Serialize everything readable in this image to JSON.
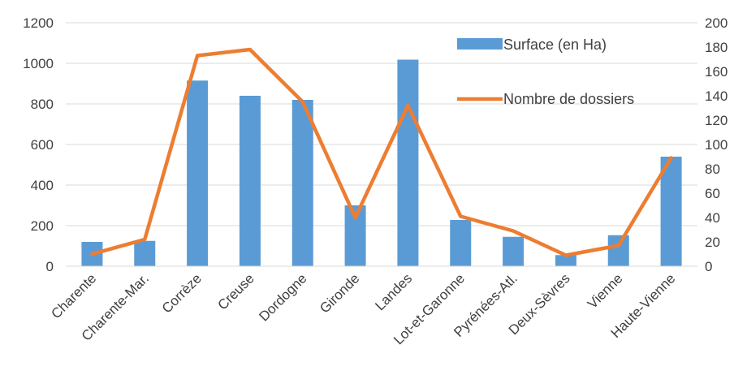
{
  "chart_data": {
    "type": "bar+line",
    "title": "",
    "categories": [
      "Charente",
      "Charente-Mar.",
      "Corrèze",
      "Creuse",
      "Dordogne",
      "Gironde",
      "Landes",
      "Lot-et-Garonne",
      "Pyrénées-Atl.",
      "Deux-Sèvres",
      "Vienne",
      "Haute-Vienne"
    ],
    "series": [
      {
        "name": "Surface (en Ha)",
        "type": "bar",
        "axis": "left",
        "color": "#5B9BD5",
        "values": [
          120,
          125,
          915,
          840,
          820,
          300,
          1018,
          228,
          145,
          55,
          153,
          540
        ]
      },
      {
        "name": "Nombre de dossiers",
        "type": "line",
        "axis": "right",
        "color": "#ED7D31",
        "values": [
          10,
          22,
          173,
          178,
          135,
          40,
          132,
          41,
          29,
          9,
          17,
          89
        ]
      }
    ],
    "y_left": {
      "min": 0,
      "max": 1200,
      "ticks": [
        "0",
        "200",
        "400",
        "600",
        "800",
        "1000",
        "1200"
      ]
    },
    "y_right": {
      "min": 0,
      "max": 200,
      "ticks": [
        "0",
        "20",
        "40",
        "60",
        "80",
        "100",
        "120",
        "140",
        "160",
        "180",
        "200"
      ]
    },
    "grid": true,
    "legend": "top-right"
  }
}
